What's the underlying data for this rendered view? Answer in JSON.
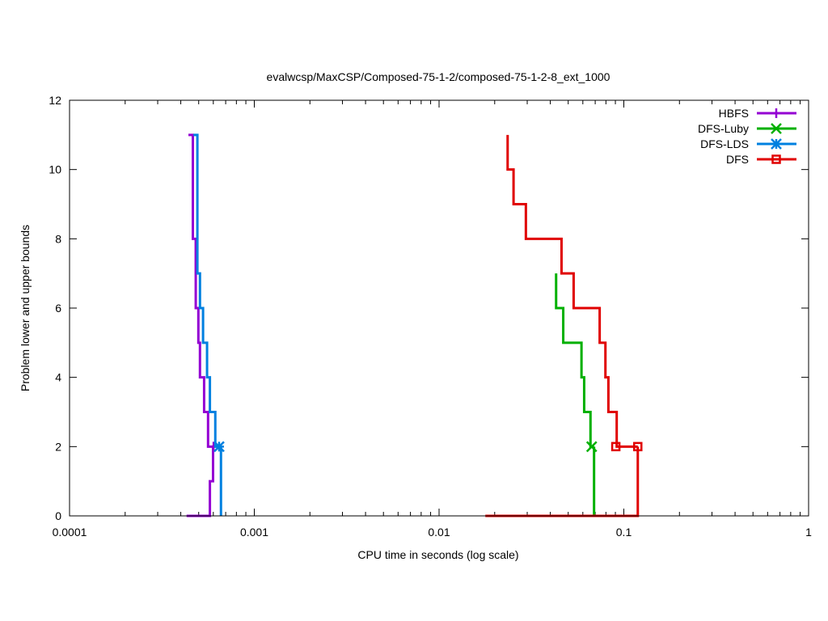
{
  "chart_data": {
    "type": "line",
    "title": "evalwcsp/MaxCSP/Composed-75-1-2/composed-75-1-2-8_ext_1000",
    "xlabel": "CPU time in seconds (log scale)",
    "ylabel": "Problem lower and upper bounds",
    "x_scale": "log",
    "xlim": [
      0.0001,
      1
    ],
    "ylim": [
      0,
      12
    ],
    "grid": false,
    "legend_position": "top-right",
    "x_ticks": [
      {
        "value": 0.0001,
        "label": "0.0001"
      },
      {
        "value": 0.001,
        "label": "0.001"
      },
      {
        "value": 0.01,
        "label": "0.01"
      },
      {
        "value": 0.1,
        "label": "0.1"
      },
      {
        "value": 1,
        "label": "1"
      }
    ],
    "y_ticks": [
      {
        "value": 0,
        "label": "0"
      },
      {
        "value": 2,
        "label": "2"
      },
      {
        "value": 4,
        "label": "4"
      },
      {
        "value": 6,
        "label": "6"
      },
      {
        "value": 8,
        "label": "8"
      },
      {
        "value": 10,
        "label": "10"
      },
      {
        "value": 12,
        "label": "12"
      }
    ],
    "series": [
      {
        "name": "HBFS",
        "color": "#9400d3",
        "marker": "plus",
        "upper": [
          [
            0.00044,
            11
          ],
          [
            0.000465,
            11
          ],
          [
            0.000465,
            8
          ],
          [
            0.000482,
            8
          ],
          [
            0.000482,
            6
          ],
          [
            0.000498,
            6
          ],
          [
            0.000498,
            5
          ],
          [
            0.000508,
            5
          ],
          [
            0.000508,
            4
          ],
          [
            0.000535,
            4
          ],
          [
            0.000535,
            3
          ],
          [
            0.000562,
            3
          ],
          [
            0.000562,
            2
          ],
          [
            0.000602,
            2
          ]
        ],
        "lower": [
          [
            0.00043,
            0
          ],
          [
            0.000575,
            0
          ],
          [
            0.000575,
            1
          ],
          [
            0.000598,
            1
          ],
          [
            0.000598,
            2
          ],
          [
            0.000602,
            2
          ]
        ],
        "final": {
          "x": 0.000602,
          "y": 2
        }
      },
      {
        "name": "DFS-Luby",
        "color": "#00b000",
        "marker": "x",
        "upper": [
          [
            0.043,
            7
          ],
          [
            0.043,
            6
          ],
          [
            0.047,
            6
          ],
          [
            0.047,
            5
          ],
          [
            0.059,
            5
          ],
          [
            0.059,
            4
          ],
          [
            0.061,
            4
          ],
          [
            0.061,
            3
          ],
          [
            0.066,
            3
          ],
          [
            0.066,
            2
          ],
          [
            0.069,
            2
          ]
        ],
        "lower": [
          [
            0.069,
            0
          ],
          [
            0.069,
            2
          ]
        ],
        "final": {
          "x": 0.067,
          "y": 2
        }
      },
      {
        "name": "DFS-LDS",
        "color": "#0080e0",
        "marker": "star",
        "upper": [
          [
            0.000468,
            11
          ],
          [
            0.000492,
            11
          ],
          [
            0.000492,
            7
          ],
          [
            0.000508,
            7
          ],
          [
            0.000508,
            6
          ],
          [
            0.000528,
            6
          ],
          [
            0.000528,
            5
          ],
          [
            0.000555,
            5
          ],
          [
            0.000555,
            4
          ],
          [
            0.000575,
            4
          ],
          [
            0.000575,
            3
          ],
          [
            0.000615,
            3
          ],
          [
            0.000615,
            2
          ],
          [
            0.00066,
            2
          ]
        ],
        "lower": [
          [
            0.00066,
            0
          ],
          [
            0.00066,
            2
          ]
        ],
        "final": {
          "x": 0.000645,
          "y": 2
        }
      },
      {
        "name": "DFS",
        "color": "#e00000",
        "marker": "square",
        "upper": [
          [
            0.0235,
            11
          ],
          [
            0.0235,
            10
          ],
          [
            0.0253,
            10
          ],
          [
            0.0253,
            9
          ],
          [
            0.0295,
            9
          ],
          [
            0.0295,
            8
          ],
          [
            0.046,
            8
          ],
          [
            0.046,
            7
          ],
          [
            0.0535,
            7
          ],
          [
            0.0535,
            6
          ],
          [
            0.074,
            6
          ],
          [
            0.074,
            5
          ],
          [
            0.0795,
            5
          ],
          [
            0.0795,
            4
          ],
          [
            0.0825,
            4
          ],
          [
            0.0825,
            3
          ],
          [
            0.0915,
            3
          ],
          [
            0.0915,
            2
          ],
          [
            0.119,
            2
          ]
        ],
        "lower": [
          [
            0.0178,
            0
          ],
          [
            0.119,
            0
          ],
          [
            0.119,
            2
          ]
        ],
        "final": {
          "x": 0.119,
          "y": 2
        },
        "extra_markers": [
          {
            "x": 0.0905,
            "y": 2
          }
        ]
      }
    ]
  }
}
